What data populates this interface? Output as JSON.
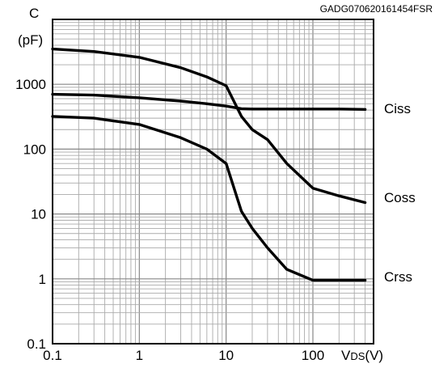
{
  "figure_code": "GADG070620161454FSR",
  "chart_data": {
    "type": "line",
    "xscale": "log",
    "yscale": "log",
    "xlim": [
      0.1,
      500
    ],
    "ylim": [
      0.1,
      10000
    ],
    "grid": true,
    "xticks": [
      {
        "value": 0.1,
        "label": "0.1"
      },
      {
        "value": 1,
        "label": "1"
      },
      {
        "value": 10,
        "label": "10"
      },
      {
        "value": 100,
        "label": "100"
      }
    ],
    "yticks": [
      {
        "value": 0.1,
        "label": "0.1"
      },
      {
        "value": 1,
        "label": "1"
      },
      {
        "value": 10,
        "label": "10"
      },
      {
        "value": 100,
        "label": "100"
      },
      {
        "value": 1000,
        "label": "1000"
      }
    ],
    "ylabel_line1": "C",
    "ylabel_line2": "(pF)",
    "xlabel_main": "V",
    "xlabel_sub": "DS",
    "xlabel_unit": "(V)",
    "series": [
      {
        "name": "Ciss",
        "x": [
          0.1,
          0.3,
          1,
          3,
          6,
          10,
          15,
          20,
          30,
          50,
          100,
          200,
          400
        ],
        "y": [
          3500,
          3200,
          2600,
          1800,
          1300,
          950,
          320,
          200,
          140,
          60,
          25,
          19,
          15
        ]
      },
      {
        "name": "Coss",
        "x": [
          0.1,
          0.3,
          1,
          3,
          6,
          10,
          15,
          20,
          30,
          50,
          100,
          200,
          400
        ],
        "y": [
          700,
          680,
          620,
          550,
          500,
          460,
          420,
          415,
          415,
          415,
          415,
          415,
          410
        ]
      },
      {
        "name": "Crss",
        "x": [
          0.1,
          0.3,
          1,
          3,
          6,
          10,
          15,
          20,
          30,
          50,
          100,
          200,
          400
        ],
        "y": [
          320,
          300,
          240,
          150,
          100,
          60,
          11,
          6,
          3,
          1.4,
          0.95,
          0.95,
          0.95
        ]
      }
    ]
  }
}
